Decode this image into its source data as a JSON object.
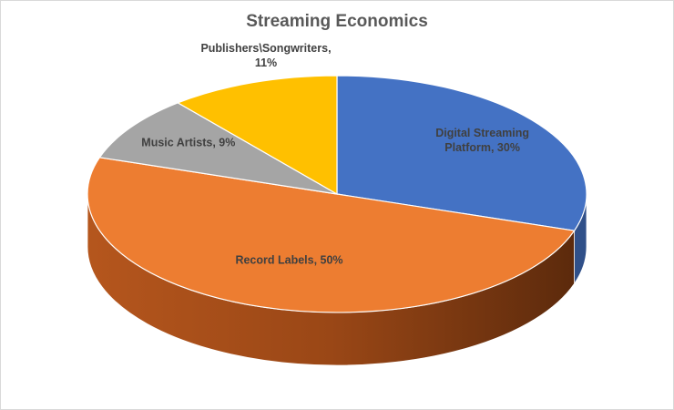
{
  "chart_data": {
    "type": "pie",
    "title": "Streaming Economics",
    "slices": [
      {
        "name": "Digital Streaming Platform",
        "value": 30,
        "label_lines": [
          "Digital Streaming",
          "Platform, 30%"
        ],
        "color": "#4472C4"
      },
      {
        "name": "Record Labels",
        "value": 50,
        "label_lines": [
          "Record Labels, 50%"
        ],
        "color": "#ED7D31"
      },
      {
        "name": "Music Artists",
        "value": 9,
        "label_lines": [
          "Music Artists, 9%"
        ],
        "color": "#A5A5A5"
      },
      {
        "name": "Publishers\\Songwriters",
        "value": 11,
        "label_lines": [
          "Publishers\\Songwriters,",
          "11%"
        ],
        "color": "#FFC000"
      }
    ]
  }
}
